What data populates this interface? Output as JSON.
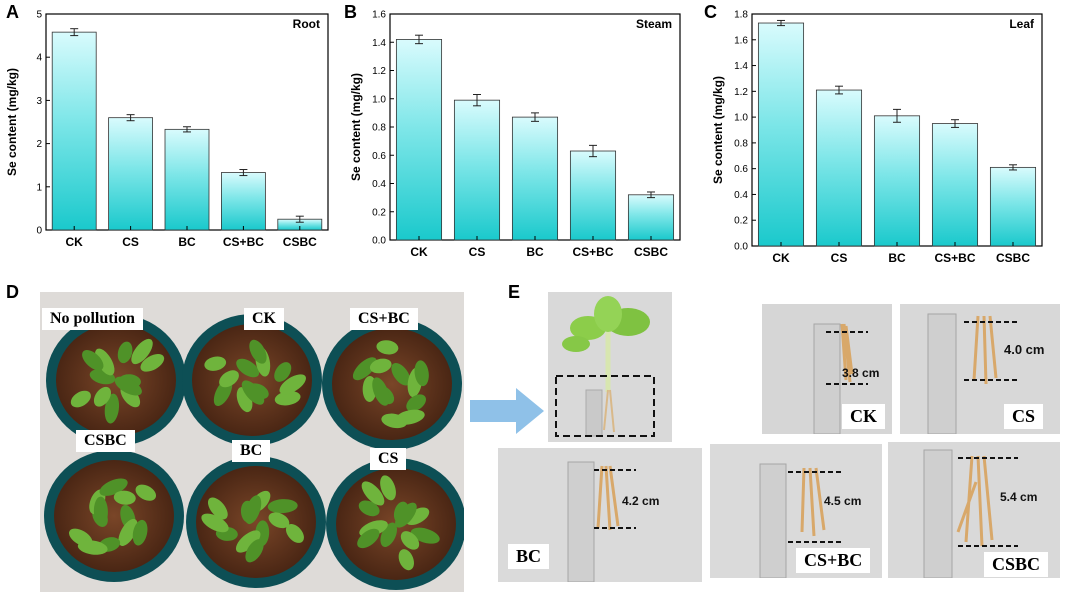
{
  "panels": {
    "a": "A",
    "b": "B",
    "c": "C",
    "d": "D",
    "e": "E"
  },
  "chart_data": [
    {
      "type": "bar",
      "title": "Root",
      "ylabel": "Se content (mg/kg)",
      "xlabel": "",
      "categories": [
        "CK",
        "CS",
        "BC",
        "CS+BC",
        "CSBC"
      ],
      "values": [
        4.58,
        2.6,
        2.33,
        1.33,
        0.25
      ],
      "errors": [
        0.08,
        0.07,
        0.06,
        0.07,
        0.07
      ],
      "ylim": [
        0,
        5
      ],
      "yticks": [
        "0",
        "1",
        "2",
        "3",
        "4",
        "5"
      ]
    },
    {
      "type": "bar",
      "title": "Steam",
      "ylabel": "Se content (mg/kg)",
      "xlabel": "",
      "categories": [
        "CK",
        "CS",
        "BC",
        "CS+BC",
        "CSBC"
      ],
      "values": [
        1.42,
        0.99,
        0.87,
        0.63,
        0.32
      ],
      "errors": [
        0.03,
        0.04,
        0.03,
        0.04,
        0.02
      ],
      "ylim": [
        0,
        1.6
      ],
      "yticks": [
        "0.0",
        "0.2",
        "0.4",
        "0.6",
        "0.8",
        "1.0",
        "1.2",
        "1.4",
        "1.6"
      ]
    },
    {
      "type": "bar",
      "title": "Leaf",
      "ylabel": "Se content (mg/kg)",
      "xlabel": "",
      "categories": [
        "CK",
        "CS",
        "BC",
        "CS+BC",
        "CSBC"
      ],
      "values": [
        1.73,
        1.21,
        1.01,
        0.95,
        0.61
      ],
      "errors": [
        0.02,
        0.03,
        0.05,
        0.03,
        0.02
      ],
      "ylim": [
        0,
        1.8
      ],
      "yticks": [
        "0.0",
        "0.2",
        "0.4",
        "0.6",
        "0.8",
        "1.0",
        "1.2",
        "1.4",
        "1.6",
        "1.8"
      ]
    }
  ],
  "pots": {
    "no_pollution": "No pollution",
    "ck": "CK",
    "cs_bc": "CS+BC",
    "csbc": "CSBC",
    "bc": "BC",
    "cs": "CS"
  },
  "roots": {
    "ck": {
      "label": "CK",
      "length": "3.8 cm"
    },
    "cs": {
      "label": "CS",
      "length": "4.0 cm"
    },
    "bc": {
      "label": "BC",
      "length": "4.2 cm"
    },
    "cs_bc": {
      "label": "CS+BC",
      "length": "4.5 cm"
    },
    "csbc": {
      "label": "CSBC",
      "length": "5.4 cm"
    }
  },
  "colors": {
    "bar_top": "#d9fbfd",
    "bar_bottom": "#1ac9cc",
    "soil": "#6b3a22",
    "pot": "#0d4f55",
    "leaf": "#5a9e32",
    "arrow": "#8fc1e8",
    "photo_bg": "#dcdcdc"
  }
}
